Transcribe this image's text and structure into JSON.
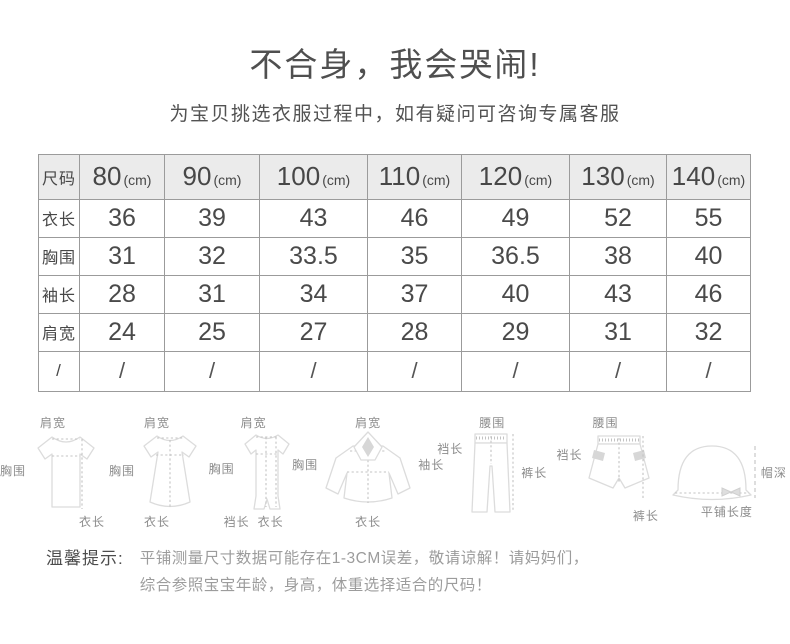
{
  "header": {
    "title": "不合身，我会哭闹!",
    "subtitle": "为宝贝挑选衣服过程中，如有疑问可咨询专属客服"
  },
  "size_table": {
    "corner_label": "尺码",
    "unit_suffix": "(cm)",
    "sizes": [
      "80",
      "90",
      "100",
      "110",
      "120",
      "130",
      "140"
    ],
    "rows": [
      {
        "label": "衣长",
        "values": [
          "36",
          "39",
          "43",
          "46",
          "49",
          "52",
          "55"
        ]
      },
      {
        "label": "胸围",
        "values": [
          "31",
          "32",
          "33.5",
          "35",
          "36.5",
          "38",
          "40"
        ]
      },
      {
        "label": "袖长",
        "values": [
          "28",
          "31",
          "34",
          "37",
          "40",
          "43",
          "46"
        ]
      },
      {
        "label": "肩宽",
        "values": [
          "24",
          "25",
          "27",
          "28",
          "29",
          "31",
          "32"
        ]
      },
      {
        "label": "/",
        "values": [
          "/",
          "/",
          "/",
          "/",
          "/",
          "/",
          "/"
        ]
      }
    ]
  },
  "diagrams": [
    {
      "name": "tshirt",
      "labels": {
        "top": "肩宽",
        "left": "胸围",
        "bottom": "衣长"
      }
    },
    {
      "name": "dress",
      "labels": {
        "top": "肩宽",
        "left": "胸围",
        "bottom": "衣长"
      }
    },
    {
      "name": "romper",
      "labels": {
        "top": "肩宽",
        "left": "胸围",
        "bottom_left": "裆长",
        "bottom_right": "衣长"
      }
    },
    {
      "name": "jacket",
      "labels": {
        "top": "肩宽",
        "left": "胸围",
        "right": "袖长",
        "bottom": "衣长"
      }
    },
    {
      "name": "pants",
      "labels": {
        "top": "腰围",
        "left": "裆长",
        "right": "裤长"
      }
    },
    {
      "name": "shorts",
      "labels": {
        "top": "腰围",
        "left": "裆长",
        "bottom": "裤长"
      }
    },
    {
      "name": "hat",
      "labels": {
        "right": "帽深",
        "bottom": "平铺长度"
      }
    }
  ],
  "footer": {
    "label": "温馨提示:",
    "line1": "平铺测量尺寸数据可能存在1-3CM误差，敬请谅解！请妈妈们，",
    "line2": "综合参照宝宝年龄，身高，体重选择适合的尺码！"
  },
  "colors": {
    "background": "#ffffff",
    "table_border": "#9b9b9b",
    "table_header_bg": "#ebebeb",
    "primary_text": "#4a4a4a",
    "note_text": "#9c9c9c",
    "diagram_stroke": "#dcdcdc",
    "diagram_label": "#8c8c8c"
  }
}
